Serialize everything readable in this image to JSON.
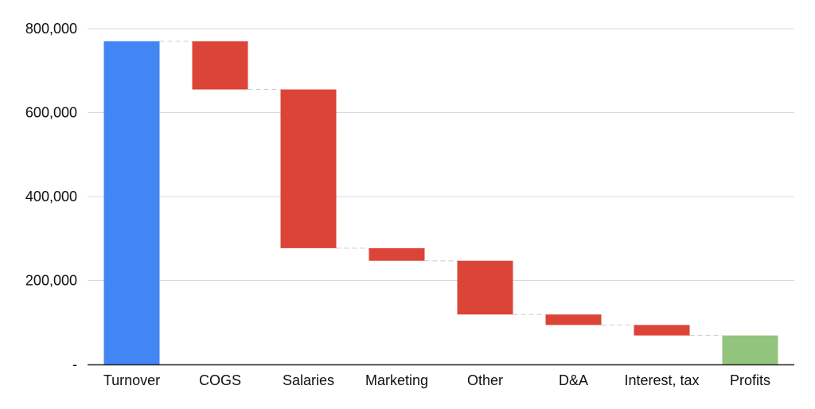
{
  "chart_data": {
    "type": "bar",
    "subtype": "waterfall",
    "title": "",
    "xlabel": "",
    "ylabel": "",
    "categories": [
      "Turnover",
      "COGS",
      "Salaries",
      "Marketing",
      "Other",
      "D&A",
      "Interest, tax",
      "Profits"
    ],
    "steps": [
      {
        "label": "Turnover",
        "kind": "total",
        "value": 770000
      },
      {
        "label": "COGS",
        "kind": "decrease",
        "value": -115000
      },
      {
        "label": "Salaries",
        "kind": "decrease",
        "value": -378000
      },
      {
        "label": "Marketing",
        "kind": "decrease",
        "value": -30000
      },
      {
        "label": "Other",
        "kind": "decrease",
        "value": -128000
      },
      {
        "label": "D&A",
        "kind": "decrease",
        "value": -25000
      },
      {
        "label": "Interest, tax",
        "kind": "decrease",
        "value": -25000
      },
      {
        "label": "Profits",
        "kind": "total",
        "value": 69000
      }
    ],
    "ylim": [
      0,
      800000
    ],
    "yticks": [
      {
        "value": 0,
        "label": "-"
      },
      {
        "value": 200000,
        "label": "200,000"
      },
      {
        "value": 400000,
        "label": "400,000"
      },
      {
        "value": 600000,
        "label": "600,000"
      },
      {
        "value": 800000,
        "label": "800,000"
      }
    ],
    "grid": true,
    "connector_lines": true,
    "legend": "none",
    "colors": {
      "start_total": "#4285F4",
      "decrease": "#DB4437",
      "end_total": "#93C47D",
      "grid": "#D9D9D9",
      "axis": "#222222",
      "connector": "#CCCCCC"
    }
  }
}
